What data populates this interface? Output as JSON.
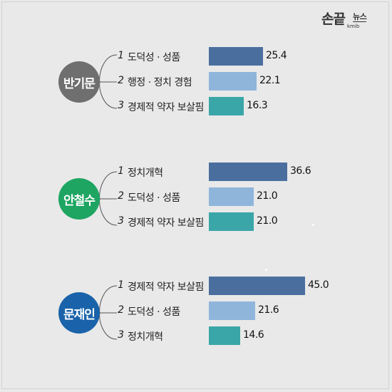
{
  "brand": {
    "main": "손끝",
    "sub": "뉴스",
    "small": "kmib"
  },
  "colors": {
    "bar_dark": "#4a6f9f",
    "bar_light": "#8fb5db",
    "bar_teal": "#3aa6a8",
    "badge_ban": "#6f6f6f",
    "badge_ahn": "#1ea562",
    "badge_moon": "#1a63aa"
  },
  "chart_data": [
    {
      "type": "bar",
      "orientation": "horizontal",
      "candidate": "반기문",
      "rank_labels": [
        "1",
        "2",
        "3"
      ],
      "categories": [
        "도덕성 · 성품",
        "행정 · 정치 경험",
        "경제적 약자 보살핌"
      ],
      "values": [
        25.4,
        22.1,
        16.3
      ],
      "value_labels": [
        "25.4",
        "22.1",
        "16.3"
      ],
      "bar_colors": [
        "#4a6f9f",
        "#8fb5db",
        "#3aa6a8"
      ]
    },
    {
      "type": "bar",
      "orientation": "horizontal",
      "candidate": "안철수",
      "rank_labels": [
        "1",
        "2",
        "3"
      ],
      "categories": [
        "정치개혁",
        "도덕성 · 성품",
        "경제적 약자 보살핌"
      ],
      "values": [
        36.6,
        21.0,
        21.0
      ],
      "value_labels": [
        "36.6",
        "21.0",
        "21.0"
      ],
      "bar_colors": [
        "#4a6f9f",
        "#8fb5db",
        "#3aa6a8"
      ]
    },
    {
      "type": "bar",
      "orientation": "horizontal",
      "candidate": "문재인",
      "rank_labels": [
        "1",
        "2",
        "3"
      ],
      "categories": [
        "경제적 약자 보살핌",
        "도덕성 · 성품",
        "정치개혁"
      ],
      "values": [
        45.0,
        21.6,
        14.6
      ],
      "value_labels": [
        "45.0",
        "21.6",
        "14.6"
      ],
      "bar_colors": [
        "#4a6f9f",
        "#8fb5db",
        "#3aa6a8"
      ]
    }
  ]
}
